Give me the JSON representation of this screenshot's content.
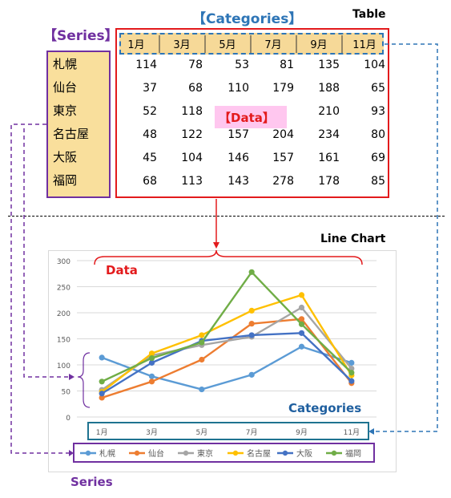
{
  "labels": {
    "series_top": "【Series】",
    "categories_top": "【Categories】",
    "table": "Table",
    "data_overlay": "【Data】",
    "line_chart": "Line Chart",
    "data_bottom": "Data",
    "categories_bottom": "Categories",
    "series_bottom": "Series"
  },
  "colors": {
    "series_label": "#7030a0",
    "categories_label": "#2e75b6",
    "data_label": "#e31a1c",
    "header_fill": "#f6d998",
    "series_fill": "#f9df9c",
    "data_overlay_fill": "#ffc7ef"
  },
  "chart_data": {
    "type": "line",
    "categories": [
      "1月",
      "3月",
      "5月",
      "7月",
      "9月",
      "11月"
    ],
    "series": [
      {
        "name": "札幌",
        "color": "#5b9bd5",
        "values": [
          114,
          78,
          53,
          81,
          135,
          104
        ]
      },
      {
        "name": "仙台",
        "color": "#ed7d31",
        "values": [
          37,
          68,
          110,
          179,
          188,
          65
        ]
      },
      {
        "name": "東京",
        "color": "#a5a5a5",
        "values": [
          52,
          118,
          138,
          154,
          210,
          93
        ]
      },
      {
        "name": "名古屋",
        "color": "#ffc000",
        "values": [
          48,
          122,
          157,
          204,
          234,
          80
        ]
      },
      {
        "name": "大阪",
        "color": "#4472c4",
        "values": [
          45,
          104,
          146,
          157,
          161,
          69
        ]
      },
      {
        "name": "福岡",
        "color": "#70ad47",
        "values": [
          68,
          113,
          143,
          278,
          178,
          85
        ]
      }
    ],
    "table_values": [
      [
        "114",
        "78",
        "53",
        "81",
        "135",
        "104"
      ],
      [
        "37",
        "68",
        "110",
        "179",
        "188",
        "65"
      ],
      [
        "52",
        "118",
        "",
        "",
        "210",
        "93"
      ],
      [
        "48",
        "122",
        "157",
        "204",
        "234",
        "80"
      ],
      [
        "45",
        "104",
        "146",
        "157",
        "161",
        "69"
      ],
      [
        "68",
        "113",
        "143",
        "278",
        "178",
        "85"
      ]
    ],
    "ylim": [
      0,
      300
    ],
    "yticks": [
      "0",
      "50",
      "100",
      "150",
      "200",
      "250",
      "300"
    ],
    "grid": true,
    "legend": "bottom"
  }
}
